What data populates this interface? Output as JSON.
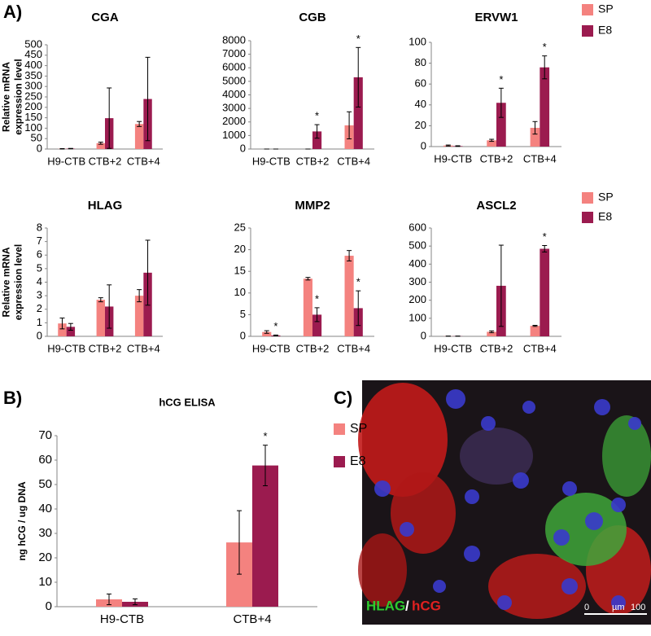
{
  "panel_labels": [
    "A)",
    "B)",
    "C)"
  ],
  "chart_data": [
    {
      "type": "bar",
      "title": "CGA",
      "ylabel_lines": [
        "Relative mRNA",
        "expression level"
      ],
      "categories": [
        "H9-CTB",
        "CTB+2",
        "CTB+4"
      ],
      "ylim": [
        0,
        500
      ],
      "yticks": [
        0,
        50,
        100,
        150,
        200,
        250,
        300,
        350,
        400,
        450,
        500
      ],
      "series": [
        {
          "name": "SP",
          "color": "#f4827f",
          "values": [
            1,
            28,
            120
          ],
          "errors": [
            1,
            5,
            12
          ]
        },
        {
          "name": "E8",
          "color": "#9b1b4f",
          "values": [
            2,
            148,
            240
          ],
          "errors": [
            1,
            145,
            200
          ]
        }
      ]
    },
    {
      "type": "bar",
      "title": "CGB",
      "categories": [
        "H9-CTB",
        "CTB+2",
        "CTB+4"
      ],
      "ylim": [
        0,
        8000
      ],
      "yticks": [
        0,
        1000,
        2000,
        3000,
        4000,
        5000,
        6000,
        7000,
        8000
      ],
      "series": [
        {
          "name": "SP",
          "color": "#f4827f",
          "values": [
            0,
            0,
            1750
          ],
          "errors": [
            0,
            0,
            1000
          ]
        },
        {
          "name": "E8",
          "color": "#9b1b4f",
          "values": [
            0,
            1300,
            5300
          ],
          "errors": [
            0,
            500,
            2200
          ],
          "markers": [
            null,
            "*",
            "*"
          ]
        }
      ]
    },
    {
      "type": "bar",
      "title": "ERVW1",
      "categories": [
        "H9-CTB",
        "CTB+2",
        "CTB+4"
      ],
      "show_legend": true,
      "ylim": [
        0,
        100
      ],
      "yticks": [
        0,
        20,
        40,
        60,
        80,
        100
      ],
      "series": [
        {
          "name": "SP",
          "color": "#f4827f",
          "values": [
            1,
            6,
            18
          ],
          "errors": [
            0.5,
            1,
            6
          ]
        },
        {
          "name": "E8",
          "color": "#9b1b4f",
          "values": [
            0.5,
            42,
            76
          ],
          "errors": [
            0.3,
            14,
            11
          ],
          "markers": [
            null,
            "*",
            "*"
          ]
        }
      ]
    },
    {
      "type": "bar",
      "title": "HLAG",
      "ylabel_lines": [
        "Relative mRNA",
        "expression level"
      ],
      "categories": [
        "H9-CTB",
        "CTB+2",
        "CTB+4"
      ],
      "ylim": [
        0,
        8
      ],
      "yticks": [
        0,
        1,
        2,
        3,
        4,
        5,
        6,
        7,
        8
      ],
      "series": [
        {
          "name": "SP",
          "color": "#f4827f",
          "values": [
            0.95,
            2.7,
            3.0
          ],
          "errors": [
            0.4,
            0.15,
            0.45
          ]
        },
        {
          "name": "E8",
          "color": "#9b1b4f",
          "values": [
            0.7,
            2.2,
            4.7
          ],
          "errors": [
            0.25,
            1.6,
            2.4
          ]
        }
      ]
    },
    {
      "type": "bar",
      "title": "MMP2",
      "categories": [
        "H9-CTB",
        "CTB+2",
        "CTB+4"
      ],
      "ylim": [
        0,
        25
      ],
      "yticks": [
        0,
        5,
        10,
        15,
        20,
        25
      ],
      "series": [
        {
          "name": "SP",
          "color": "#f4827f",
          "values": [
            1,
            13.3,
            18.6
          ],
          "errors": [
            0.3,
            0.3,
            1.2
          ]
        },
        {
          "name": "E8",
          "color": "#9b1b4f",
          "values": [
            0.2,
            5,
            6.5
          ],
          "errors": [
            0.1,
            1.6,
            4
          ],
          "markers": [
            "*",
            "*",
            "*"
          ]
        }
      ]
    },
    {
      "type": "bar",
      "title": "ASCL2",
      "categories": [
        "H9-CTB",
        "CTB+2",
        "CTB+4"
      ],
      "show_legend": true,
      "ylim": [
        0,
        600
      ],
      "yticks": [
        0,
        100,
        200,
        300,
        400,
        500,
        600
      ],
      "series": [
        {
          "name": "SP",
          "color": "#f4827f",
          "values": [
            1,
            25,
            58
          ],
          "errors": [
            0.5,
            5,
            3
          ]
        },
        {
          "name": "E8",
          "color": "#9b1b4f",
          "values": [
            1,
            280,
            485
          ],
          "errors": [
            0.5,
            225,
            18
          ],
          "markers": [
            null,
            null,
            "*"
          ]
        }
      ]
    },
    {
      "type": "bar",
      "title": "hCG ELISA",
      "ylabel_lines": [
        "ng hCG / ug DNA"
      ],
      "categories": [
        "H9-CTB",
        "CTB+4"
      ],
      "show_legend": true,
      "ylim": [
        0,
        70
      ],
      "yticks": [
        0,
        10,
        20,
        30,
        40,
        50,
        60,
        70
      ],
      "series": [
        {
          "name": "SP",
          "color": "#f4827f",
          "values": [
            3,
            26.3
          ],
          "errors": [
            2.2,
            13
          ]
        },
        {
          "name": "E8",
          "color": "#9b1b4f",
          "values": [
            2,
            57.8
          ],
          "errors": [
            1.2,
            8.3
          ],
          "markers": [
            null,
            "*"
          ]
        }
      ]
    }
  ],
  "image": {
    "label_green": "HLAG",
    "separator": "/",
    "label_red": "hCG",
    "scale_bar": {
      "start": 0,
      "unit": "µm",
      "end": 100
    }
  }
}
